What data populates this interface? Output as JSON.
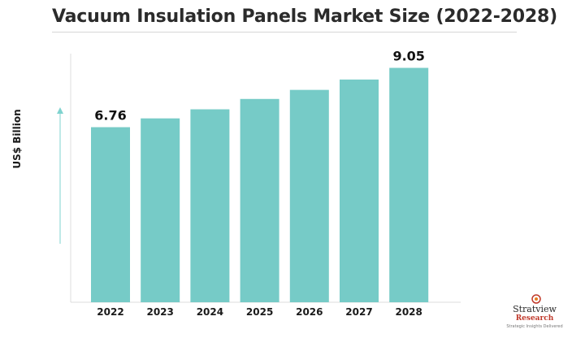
{
  "chart_data": {
    "type": "bar",
    "title": "Vacuum Insulation Panels Market Size (2022-2028)",
    "ylabel": "US$ Billion",
    "xlabel": "",
    "categories": [
      "2022",
      "2023",
      "2024",
      "2025",
      "2026",
      "2027",
      "2028"
    ],
    "values": [
      6.76,
      7.1,
      7.45,
      7.85,
      8.2,
      8.6,
      9.05
    ],
    "data_labels": {
      "2022": "6.76",
      "2028": "9.05"
    },
    "ylim": [
      0,
      9.6
    ],
    "bar_color": "#76cbc7",
    "grid": false,
    "legend": "none"
  },
  "logo": {
    "name": "Stratview",
    "sub": "Research",
    "tagline": "Strategic Insights Delivered"
  },
  "colors": {
    "axis_arrow": "#7fd3cf",
    "axis_line": "#dcdcdc",
    "title": "#2b2b2b"
  }
}
